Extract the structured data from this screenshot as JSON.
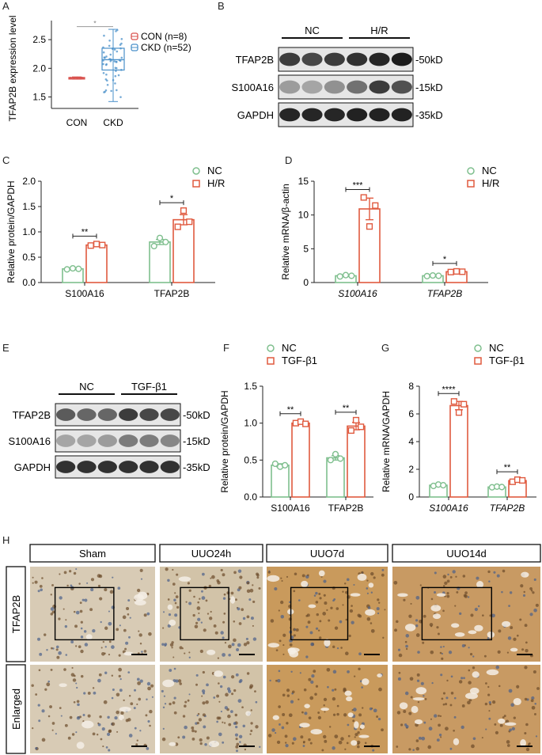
{
  "panels": {
    "A": {
      "letter": "A",
      "chart_data": {
        "type": "box",
        "ylabel": "TFAP2B expression level",
        "categories": [
          "CON",
          "CKD"
        ],
        "yticks": [
          "1.5",
          "2.0",
          "2.5"
        ],
        "ylim": [
          1.3,
          2.75
        ],
        "legend": [
          "CON (n=8)",
          "CKD (n=52)"
        ],
        "colors": [
          "#d9534f",
          "#4a90c9"
        ],
        "boxes": [
          {
            "median": 1.83,
            "q1": 1.82,
            "q3": 1.84,
            "min": 1.81,
            "max": 1.85
          },
          {
            "median": 2.15,
            "q1": 1.97,
            "q3": 2.35,
            "min": 1.42,
            "max": 2.68
          }
        ],
        "sig": "*"
      }
    },
    "B": {
      "letter": "B",
      "groups": [
        "NC",
        "H/R"
      ],
      "rows": [
        "TFAP2B",
        "S100A16",
        "GAPDH"
      ],
      "sizes": [
        "-50kD",
        "-15kD",
        "-35kD"
      ]
    },
    "C": {
      "letter": "C",
      "chart_data": {
        "type": "bar",
        "ylabel": "Relative  protein/GAPDH",
        "categories": [
          "S100A16",
          "TFAP2B"
        ],
        "italic_categories": false,
        "yticks": [
          "0.0",
          "0.5",
          "1.0",
          "1.5",
          "2.0"
        ],
        "ylim": [
          0,
          2.0
        ],
        "series": [
          {
            "name": "NC",
            "values": [
              0.27,
              0.8
            ],
            "points": [
              [
                0.26,
                0.28,
                0.27
              ],
              [
                0.72,
                0.88,
                0.8
              ]
            ],
            "err": [
              0.01,
              0.05
            ]
          },
          {
            "name": "H/R",
            "values": [
              0.74,
              1.24
            ],
            "points": [
              [
                0.73,
                0.76,
                0.74
              ],
              [
                1.1,
                1.42,
                1.2
              ]
            ],
            "err": [
              0.01,
              0.1
            ]
          }
        ],
        "sig": [
          "**",
          "*"
        ],
        "legend": [
          "NC",
          "H/R"
        ]
      }
    },
    "D": {
      "letter": "D",
      "chart_data": {
        "type": "bar",
        "ylabel": "Relative  mRNA/β-actin",
        "categories": [
          "S100A16",
          "TFAP2B"
        ],
        "italic_categories": true,
        "yticks": [
          "0",
          "5",
          "10",
          "15"
        ],
        "ylim": [
          0,
          15
        ],
        "series": [
          {
            "name": "NC",
            "values": [
              1.0,
              1.0
            ],
            "points": [
              [
                0.9,
                1.1,
                1.0
              ],
              [
                0.95,
                1.05,
                1.0
              ]
            ],
            "err": [
              0.1,
              0.05
            ]
          },
          {
            "name": "H/R",
            "values": [
              10.9,
              1.6
            ],
            "points": [
              [
                12.6,
                8.3,
                11.4
              ],
              [
                1.55,
                1.65,
                1.6
              ]
            ],
            "err": [
              1.6,
              0.05
            ]
          }
        ],
        "sig": [
          "***",
          "*"
        ],
        "legend": [
          "NC",
          "H/R"
        ]
      }
    },
    "E": {
      "letter": "E",
      "groups": [
        "NC",
        "TGF-β1"
      ],
      "rows": [
        "TFAP2B",
        "S100A16",
        "GAPDH"
      ],
      "sizes": [
        "-50kD",
        "-15kD",
        "-35kD"
      ]
    },
    "F": {
      "letter": "F",
      "chart_data": {
        "type": "bar",
        "ylabel": "Relative  protein/GAPDH",
        "categories": [
          "S100A16",
          "TFAP2B"
        ],
        "italic_categories": false,
        "yticks": [
          "0.0",
          "0.5",
          "1.0",
          "1.5"
        ],
        "ylim": [
          0,
          1.5
        ],
        "series": [
          {
            "name": "NC",
            "values": [
              0.43,
              0.53
            ],
            "points": [
              [
                0.45,
                0.41,
                0.43
              ],
              [
                0.5,
                0.58,
                0.52
              ]
            ],
            "err": [
              0.02,
              0.03
            ]
          },
          {
            "name": "TGF-β1",
            "values": [
              1.0,
              0.96
            ],
            "points": [
              [
                1.0,
                1.02,
                0.99
              ],
              [
                0.9,
                1.04,
                0.95
              ]
            ],
            "err": [
              0.01,
              0.05
            ]
          }
        ],
        "sig": [
          "**",
          "**"
        ],
        "legend": [
          "NC",
          "TGF-β1"
        ]
      }
    },
    "G": {
      "letter": "G",
      "chart_data": {
        "type": "bar",
        "ylabel": "Relative  mRNA/GAPDH",
        "categories": [
          "S100A16",
          "TFAP2B"
        ],
        "italic_categories": true,
        "yticks": [
          "0",
          "2",
          "4",
          "6",
          "8"
        ],
        "ylim": [
          0,
          8
        ],
        "series": [
          {
            "name": "NC",
            "values": [
              0.85,
              0.72
            ],
            "points": [
              [
                0.8,
                0.9,
                0.85
              ],
              [
                0.7,
                0.75,
                0.72
              ]
            ],
            "err": [
              0.05,
              0.03
            ]
          },
          {
            "name": "TGF-β1",
            "values": [
              6.6,
              1.18
            ],
            "points": [
              [
                6.9,
                6.1,
                6.7
              ],
              [
                1.1,
                1.25,
                1.2
              ]
            ],
            "err": [
              0.3,
              0.06
            ]
          }
        ],
        "sig": [
          "****",
          "**"
        ],
        "legend": [
          "NC",
          "TGF-β1"
        ]
      }
    },
    "H": {
      "letter": "H",
      "columns": [
        "Sham",
        "UUO24h",
        "UUO7d",
        "UUO14d"
      ],
      "rows": [
        "TFAP2B",
        "Enlarged"
      ]
    }
  },
  "colors": {
    "nc": "#7fbf8e",
    "treat": "#e05a3f",
    "axis": "#222222"
  }
}
